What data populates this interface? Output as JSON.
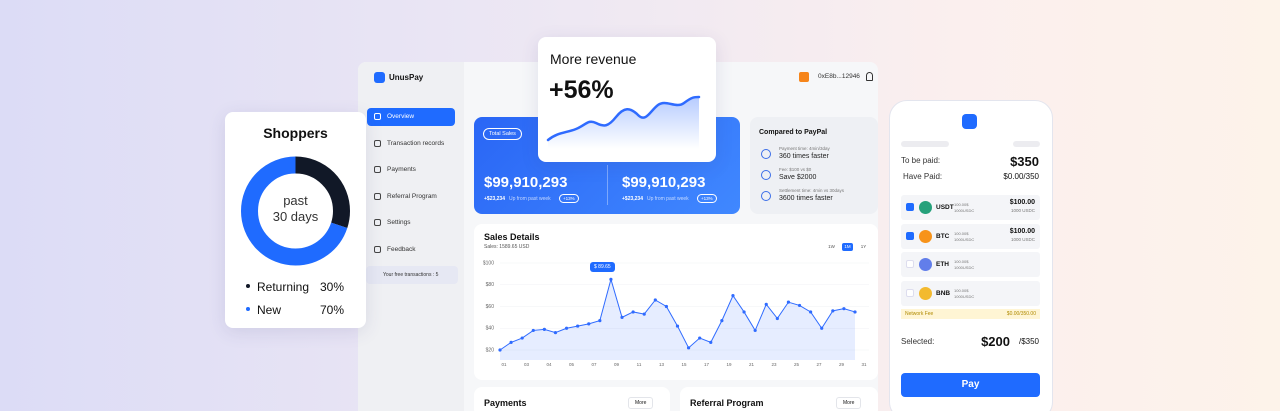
{
  "shoppers": {
    "title": "Shoppers",
    "center": [
      "past",
      "30 days"
    ],
    "chart": {
      "type": "pie",
      "categories": [
        "Returning",
        "New"
      ],
      "values": [
        30,
        70
      ],
      "value_labels": [
        "30%",
        "70%"
      ],
      "colors": [
        "#111827",
        "#1f6bff"
      ]
    }
  },
  "revenue": {
    "title": "More revenue",
    "value": "+56%"
  },
  "dashboard": {
    "brand": "UnusPay",
    "wallet": "0xE8b...12946",
    "nav": [
      "Overview",
      "Transaction records",
      "Payments",
      "Referral Program",
      "Settings",
      "Feedback"
    ],
    "free_transactions": "Your free transactions : 5",
    "total_sales": {
      "label": "Total Sales",
      "cards": [
        {
          "amount": "$99,910,293",
          "change": "+$23,234",
          "note": "Up from past week",
          "badge": "+13%"
        },
        {
          "amount": "$99,910,293",
          "change": "+$23,234",
          "note": "Up from past week",
          "badge": "+13%"
        }
      ]
    },
    "compare": {
      "title": "Compared to PayPal",
      "items": [
        {
          "detail": "Payment time: 4min/3day",
          "result": "360 times faster"
        },
        {
          "detail": "Fee: $100 vs $0",
          "result": "Save $2000"
        },
        {
          "detail": "Settlement time: 4min vs 30days",
          "result": "3600 times faster"
        }
      ]
    },
    "sales_details": {
      "title": "Sales Details",
      "subtitle": "Sales: 1589.65 USD",
      "ranges": [
        "1W",
        "1M",
        "1Y"
      ],
      "tooltip": "$ 89.65",
      "chart": {
        "type": "line",
        "color": "#2f6bff",
        "values": [
          20,
          27,
          31,
          38,
          39,
          36,
          40,
          42,
          44,
          47,
          85,
          50,
          55,
          53,
          66,
          60,
          42,
          22,
          31,
          27,
          47,
          70,
          55,
          38,
          62,
          49,
          64,
          61,
          55,
          40,
          56,
          58,
          55
        ],
        "ylim": [
          20,
          100
        ],
        "yticks": [
          {
            "value": 20,
            "label": "$20"
          },
          {
            "value": 40,
            "label": "$40"
          },
          {
            "value": 60,
            "label": "$60"
          },
          {
            "value": 80,
            "label": "$80"
          },
          {
            "value": 100,
            "label": "$100"
          }
        ],
        "x_labels": [
          "01",
          "03",
          "04",
          "05",
          "07",
          "09",
          "11",
          "13",
          "15",
          "17",
          "19",
          "21",
          "23",
          "25",
          "27",
          "29",
          "31"
        ]
      }
    },
    "panels": [
      {
        "title": "Payments",
        "action": "More"
      },
      {
        "title": "Referral Program",
        "action": "More"
      }
    ]
  },
  "checkout": {
    "to_be_paid_label": "To be paid:",
    "to_be_paid": "$350",
    "have_paid_label": "Have Paid:",
    "have_paid": "$0.00/350",
    "coins": [
      {
        "symbol": "USDT",
        "color": "#26a17b",
        "checked": true,
        "balance": "100.00$",
        "balance2": "1000USDC",
        "amount": "$100.00",
        "amount2": "1000 USDC"
      },
      {
        "symbol": "BTC",
        "color": "#f7931a",
        "checked": true,
        "balance": "100.00$",
        "balance2": "1000USDC",
        "amount": "$100.00",
        "amount2": "1000 USDC"
      },
      {
        "symbol": "ETH",
        "color": "#627eea",
        "checked": false,
        "balance": "100.00$",
        "balance2": "1000USDC"
      },
      {
        "symbol": "BNB",
        "color": "#f3ba2f",
        "checked": false,
        "balance": "100.00$",
        "balance2": "1000USDC"
      }
    ],
    "network_fee_label": "Network Fee",
    "network_fee": "$0.00/350.00",
    "selected_label": "Selected:",
    "selected": "$200",
    "selected_total": "/$350",
    "button": "Pay"
  }
}
